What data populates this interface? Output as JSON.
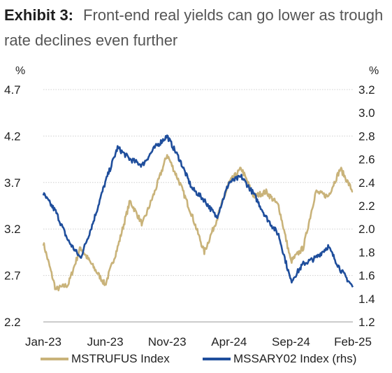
{
  "header": {
    "exhibit": "Exhibit 3:",
    "title": "Front-end real yields can go lower as trough rate declines even further"
  },
  "chart_data": {
    "type": "line",
    "title": "Front-end real yields can go lower as trough rate declines even further",
    "y_left_unit": "%",
    "y_right_unit": "%",
    "y_left_range": [
      2.2,
      4.7
    ],
    "y_right_range": [
      1.2,
      3.2
    ],
    "y_left_ticks": [
      "4.7",
      "4.2",
      "3.7",
      "3.2",
      "2.7",
      "2.2"
    ],
    "y_right_ticks": [
      "3.2",
      "3.0",
      "2.8",
      "2.6",
      "2.4",
      "2.2",
      "2.0",
      "1.8",
      "1.6",
      "1.4",
      "1.2"
    ],
    "x_ticks": [
      "Jan-23",
      "Jun-23",
      "Nov-23",
      "Apr-24",
      "Sep-24",
      "Feb-25"
    ],
    "grid": "horizontal",
    "legend_position": "bottom",
    "series": [
      {
        "name": "MSTRUFUS Index",
        "axis": "left",
        "color": "#C9B37A",
        "x": [
          "2023-01",
          "2023-02",
          "2023-03",
          "2023-04",
          "2023-05",
          "2023-06",
          "2023-07",
          "2023-08",
          "2023-09",
          "2023-10",
          "2023-11",
          "2023-12",
          "2024-01",
          "2024-02",
          "2024-03",
          "2024-04",
          "2024-05",
          "2024-06",
          "2024-07",
          "2024-08",
          "2024-09",
          "2024-10",
          "2024-11",
          "2024-12",
          "2025-01",
          "2025-02"
        ],
        "values": [
          3.05,
          2.55,
          2.6,
          3.0,
          2.8,
          2.6,
          3.0,
          3.5,
          3.25,
          3.6,
          4.0,
          3.7,
          3.35,
          2.95,
          3.3,
          3.7,
          3.85,
          3.55,
          3.6,
          3.45,
          2.85,
          3.0,
          3.6,
          3.55,
          3.85,
          3.6
        ]
      },
      {
        "name": "MSSARY02 Index (rhs)",
        "axis": "right",
        "color": "#1F4E9C",
        "x": [
          "2023-01",
          "2023-02",
          "2023-03",
          "2023-04",
          "2023-05",
          "2023-06",
          "2023-07",
          "2023-08",
          "2023-09",
          "2023-10",
          "2023-11",
          "2023-12",
          "2024-01",
          "2024-02",
          "2024-03",
          "2024-04",
          "2024-05",
          "2024-06",
          "2024-07",
          "2024-08",
          "2024-09",
          "2024-10",
          "2024-11",
          "2024-12",
          "2025-01",
          "2025-02"
        ],
        "values": [
          2.3,
          2.15,
          1.9,
          1.75,
          2.05,
          2.4,
          2.7,
          2.6,
          2.55,
          2.7,
          2.8,
          2.6,
          2.35,
          2.25,
          2.1,
          2.4,
          2.45,
          2.3,
          2.1,
          1.95,
          1.55,
          1.7,
          1.75,
          1.85,
          1.65,
          1.5
        ]
      }
    ]
  }
}
